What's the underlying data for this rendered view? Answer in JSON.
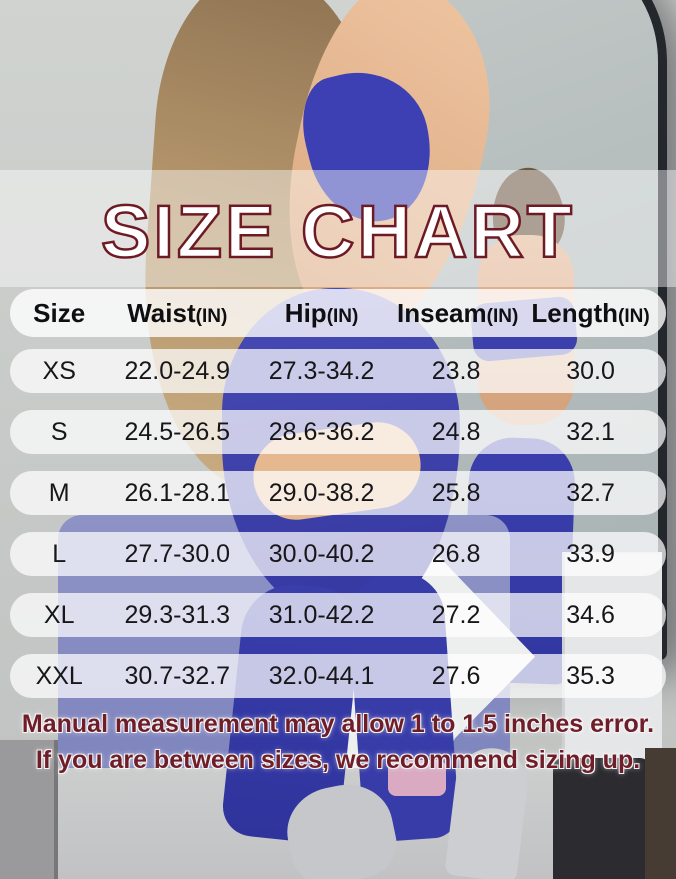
{
  "title": "SIZE CHART",
  "columns": [
    {
      "label": "Size",
      "unit": ""
    },
    {
      "label": "Waist",
      "unit": "(IN)"
    },
    {
      "label": "Hip",
      "unit": "(IN)"
    },
    {
      "label": "Inseam",
      "unit": "(IN)"
    },
    {
      "label": "Length",
      "unit": "(IN)"
    }
  ],
  "chart_data": {
    "type": "table",
    "title": "SIZE CHART",
    "columns": [
      "Size",
      "Waist(IN)",
      "Hip(IN)",
      "Inseam(IN)",
      "Length(IN)"
    ],
    "rows": [
      [
        "XS",
        "22.0-24.9",
        "27.3-34.2",
        "23.8",
        "30.0"
      ],
      [
        "S",
        "24.5-26.5",
        "28.6-36.2",
        "24.8",
        "32.1"
      ],
      [
        "M",
        "26.1-28.1",
        "29.0-38.2",
        "25.8",
        "32.7"
      ],
      [
        "L",
        "27.7-30.0",
        "30.0-40.2",
        "26.8",
        "33.9"
      ],
      [
        "XL",
        "29.3-31.3",
        "31.0-42.2",
        "27.2",
        "34.6"
      ],
      [
        "XXL",
        "30.7-32.7",
        "32.0-44.1",
        "27.6",
        "35.3"
      ]
    ],
    "notes": [
      "Manual measurement may allow 1 to 1.5 inches error.",
      "If you are between sizes, we recommend sizing up."
    ]
  },
  "note": {
    "line1": "Manual measurement may allow 1 to 1.5 inches error.",
    "line2": "If you are between sizes, we recommend sizing up."
  },
  "colors": {
    "title_fill": "#ffffff",
    "title_outline": "#6e1a24",
    "note_text": "#6e1d29",
    "outfit_blue": "#3a3ea8",
    "row_pill": "rgba(255,255,255,0.72)"
  }
}
